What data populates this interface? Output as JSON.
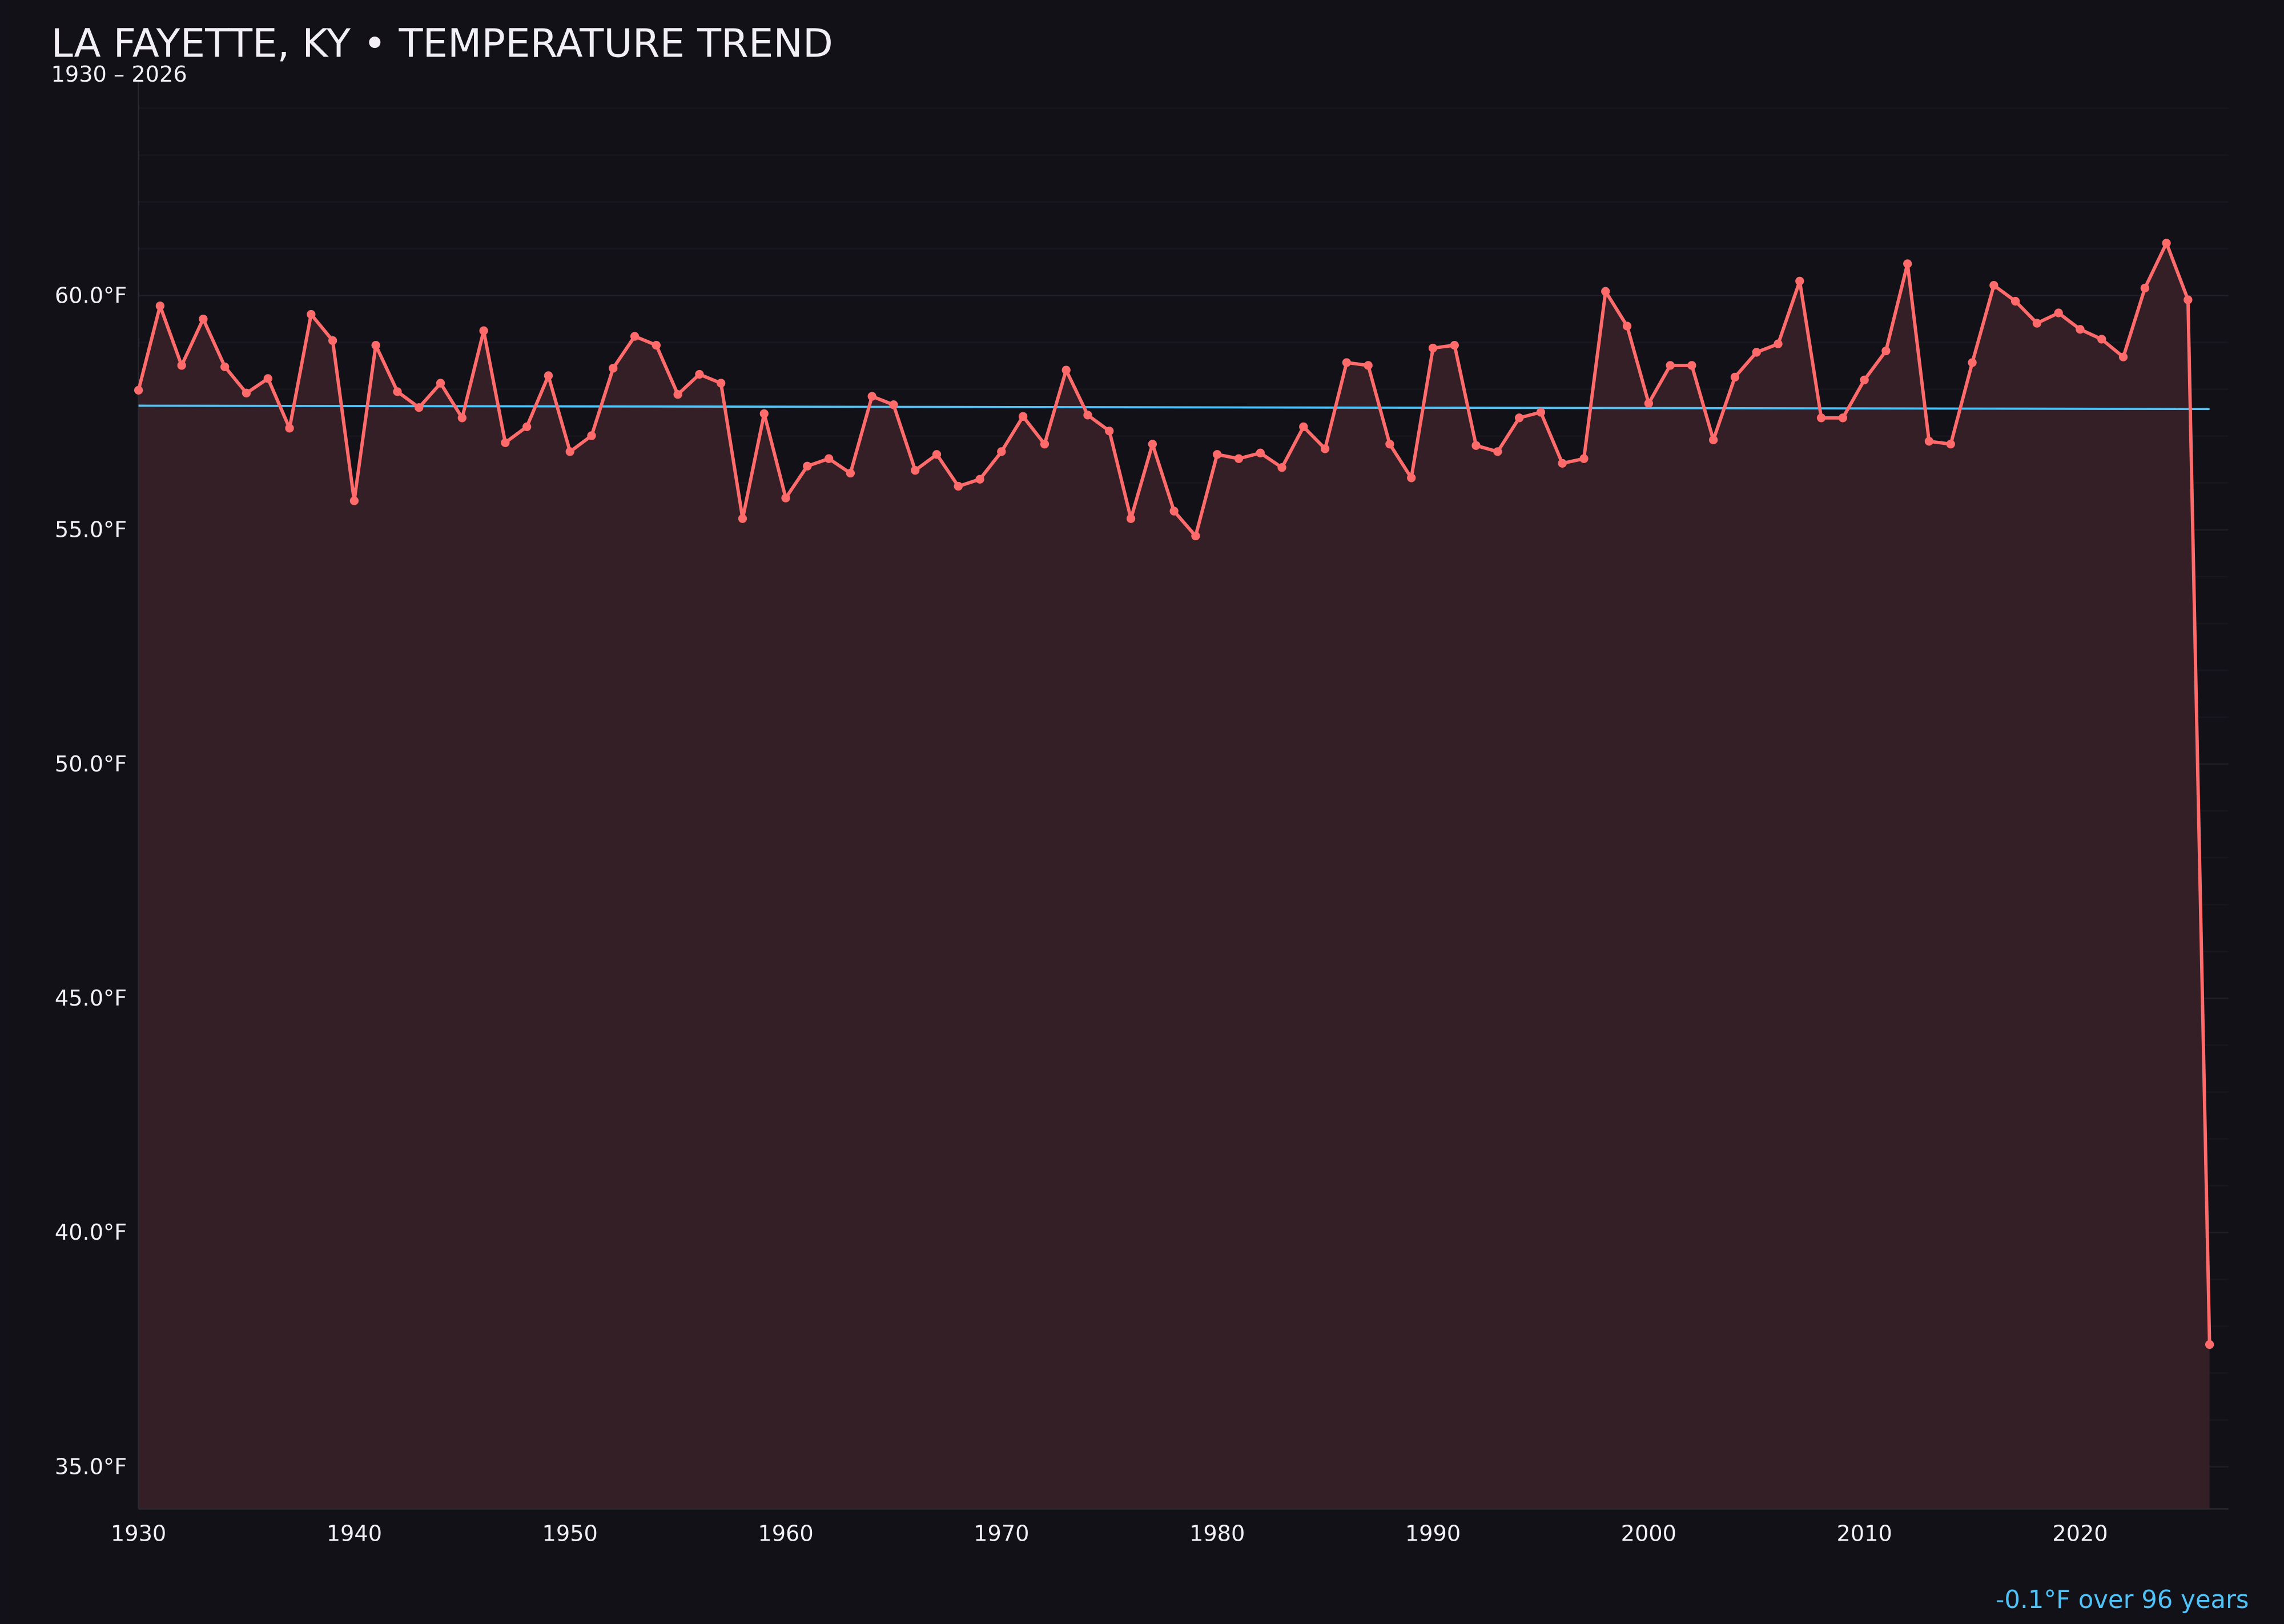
{
  "title": "LA FAYETTE, KY • TEMPERATURE TREND",
  "subtitle": "1930 – 2026",
  "trend_label": "-0.1°F over 96 years",
  "colors": {
    "background": "#121118",
    "series": "#ff6b6b",
    "fill": "#341f26",
    "trend": "#4fc3f7",
    "text": "#f2f0f5"
  },
  "chart_data": {
    "type": "line",
    "title": "LA FAYETTE, KY • TEMPERATURE TREND",
    "subtitle": "1930 – 2026",
    "xlabel": "",
    "ylabel": "",
    "xlim": [
      1930,
      2026
    ],
    "ylim": [
      34.1,
      64.6
    ],
    "grid": true,
    "area_fill": true,
    "x_ticks": [
      1930,
      1940,
      1950,
      1960,
      1970,
      1980,
      1990,
      2000,
      2010,
      2020
    ],
    "y_ticks": [
      35,
      40,
      45,
      50,
      55,
      60
    ],
    "y_tick_labels": [
      "35.0°F",
      "40.0°F",
      "45.0°F",
      "50.0°F",
      "55.0°F",
      "60.0°F"
    ],
    "x": [
      1930,
      1931,
      1932,
      1933,
      1934,
      1935,
      1936,
      1937,
      1938,
      1939,
      1940,
      1941,
      1942,
      1943,
      1944,
      1945,
      1946,
      1947,
      1948,
      1949,
      1950,
      1951,
      1952,
      1953,
      1954,
      1955,
      1956,
      1957,
      1958,
      1959,
      1960,
      1961,
      1962,
      1963,
      1964,
      1965,
      1966,
      1967,
      1968,
      1969,
      1970,
      1971,
      1972,
      1973,
      1974,
      1975,
      1976,
      1977,
      1978,
      1979,
      1980,
      1981,
      1982,
      1983,
      1984,
      1985,
      1986,
      1987,
      1988,
      1989,
      1990,
      1991,
      1992,
      1993,
      1994,
      1995,
      1996,
      1997,
      1998,
      1999,
      2000,
      2001,
      2002,
      2003,
      2004,
      2005,
      2006,
      2007,
      2008,
      2009,
      2010,
      2011,
      2012,
      2013,
      2014,
      2015,
      2016,
      2017,
      2018,
      2019,
      2020,
      2021,
      2022,
      2023,
      2024,
      2025,
      2026
    ],
    "values": [
      57.98,
      59.78,
      58.51,
      59.5,
      58.48,
      57.92,
      58.23,
      57.17,
      59.6,
      59.04,
      55.62,
      58.94,
      57.95,
      57.61,
      58.13,
      57.39,
      59.25,
      56.86,
      57.2,
      58.29,
      56.67,
      57.01,
      58.45,
      59.13,
      58.94,
      57.89,
      58.32,
      58.13,
      55.24,
      57.48,
      55.68,
      56.36,
      56.52,
      56.21,
      57.85,
      57.67,
      56.27,
      56.61,
      55.93,
      56.08,
      56.67,
      57.42,
      56.83,
      58.41,
      57.45,
      57.11,
      55.24,
      56.83,
      55.4,
      54.87,
      56.61,
      56.52,
      56.64,
      56.33,
      57.2,
      56.73,
      58.57,
      58.51,
      56.83,
      56.11,
      58.88,
      58.94,
      56.8,
      56.67,
      57.39,
      57.51,
      56.42,
      56.52,
      60.09,
      59.35,
      57.7,
      58.51,
      58.51,
      56.92,
      58.26,
      58.79,
      58.97,
      60.31,
      57.39,
      57.39,
      58.2,
      58.82,
      60.68,
      56.89,
      56.83,
      58.57,
      60.22,
      59.88,
      59.41,
      59.63,
      59.28,
      59.07,
      58.69,
      60.16,
      61.12,
      59.91,
      37.61
    ],
    "trend": {
      "start": [
        1930,
        57.65
      ],
      "end": [
        2026,
        57.58
      ]
    }
  }
}
